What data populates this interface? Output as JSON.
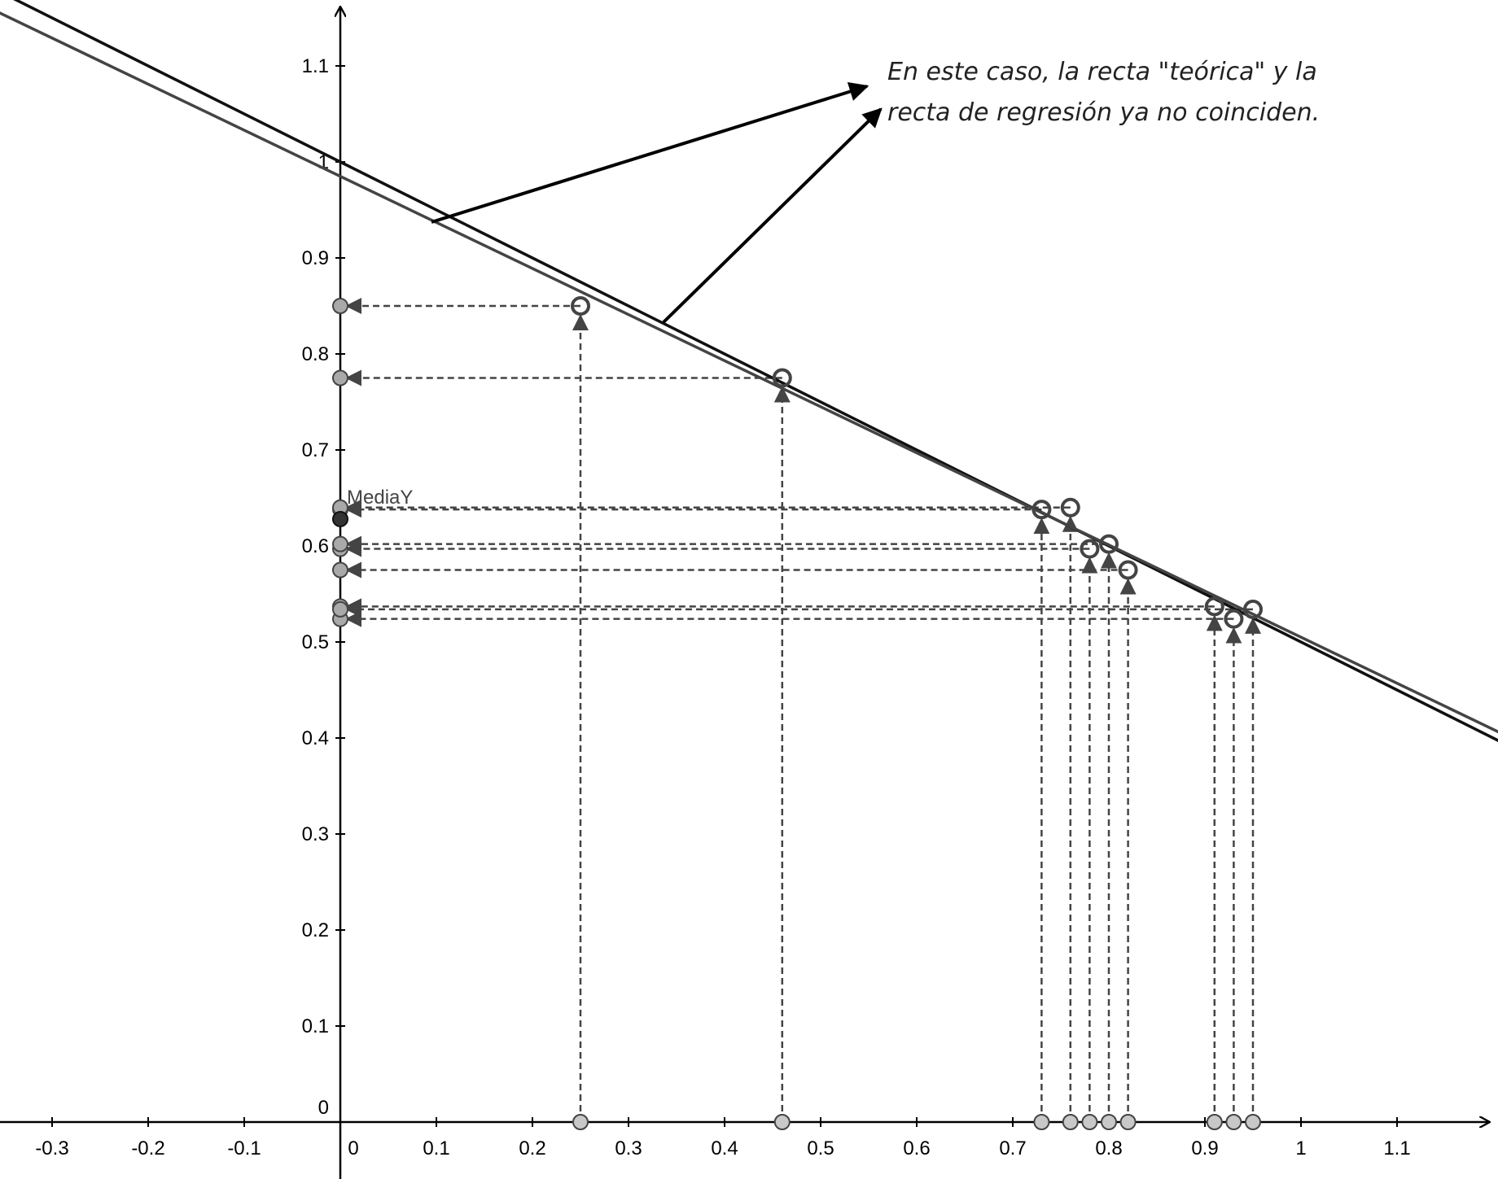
{
  "chart_data": {
    "type": "scatter",
    "xlim": [
      -0.35,
      1.2
    ],
    "ylim": [
      -0.05,
      1.17
    ],
    "grid": false,
    "x_ticks": [
      "-0.3",
      "-0.2",
      "-0.1",
      "0",
      "0.1",
      "0.2",
      "0.3",
      "0.4",
      "0.5",
      "0.6",
      "0.7",
      "0.8",
      "0.9",
      "1",
      "1.1"
    ],
    "y_ticks": [
      "0",
      "0.1",
      "0.2",
      "0.3",
      "0.4",
      "0.5",
      "0.6",
      "0.7",
      "0.8",
      "0.9",
      "1",
      "1.1"
    ],
    "points": [
      {
        "x": 0.25,
        "y": 0.85
      },
      {
        "x": 0.46,
        "y": 0.775
      },
      {
        "x": 0.73,
        "y": 0.638
      },
      {
        "x": 0.76,
        "y": 0.64
      },
      {
        "x": 0.78,
        "y": 0.597
      },
      {
        "x": 0.8,
        "y": 0.602
      },
      {
        "x": 0.82,
        "y": 0.575
      },
      {
        "x": 0.91,
        "y": 0.537
      },
      {
        "x": 0.93,
        "y": 0.524
      },
      {
        "x": 0.95,
        "y": 0.534
      }
    ],
    "lines": [
      {
        "intercept": 1.0,
        "slope": -0.5,
        "color": "#111111"
      },
      {
        "intercept": 0.985,
        "slope": -0.48,
        "color": "#444444"
      }
    ],
    "mean_y": {
      "label": "MediaY",
      "value": 0.628
    },
    "annotation": {
      "line1": "En este caso, la recta \"teórica\" y la",
      "line2": "recta de regresión ya no coinciden."
    }
  }
}
